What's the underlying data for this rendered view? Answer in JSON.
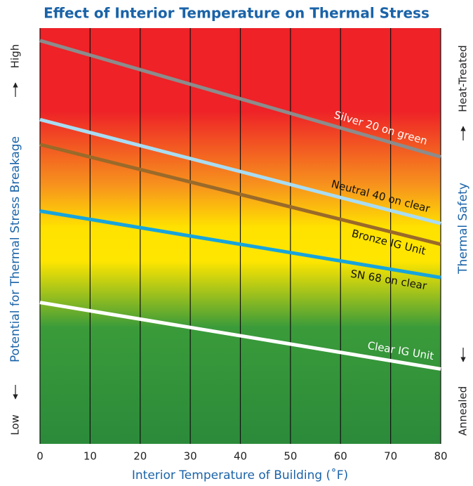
{
  "chart_data": {
    "type": "line",
    "title": "Effect of Interior Temperature on Thermal Stress",
    "xlabel": "Interior Temperature of Building (˚F)",
    "ylabel": "Potential for Thermal Stress Breakage",
    "y_low_label": "Low",
    "y_high_label": "High",
    "y2label": "Thermal Safety",
    "y2_low_label": "Annealed",
    "y2_high_label": "Heat-Treated",
    "x": [
      0,
      80
    ],
    "xlim": [
      0,
      80
    ],
    "xticks": [
      0,
      10,
      20,
      30,
      40,
      50,
      60,
      70,
      80
    ],
    "ylim": [
      0,
      100
    ],
    "grid": true,
    "series": [
      {
        "name": "Silver 20 on green",
        "color": "#8c8c8c",
        "values": [
          97,
          69
        ]
      },
      {
        "name": "Neutral 40 on clear",
        "color": "#a9dcf2",
        "values": [
          78,
          53
        ]
      },
      {
        "name": "Bronze IG Unit",
        "color": "#9a6a2a",
        "values": [
          72,
          48
        ]
      },
      {
        "name": "SN 68 on clear",
        "color": "#17a4dc",
        "values": [
          56,
          40
        ]
      },
      {
        "name": "Clear IG Unit",
        "color": "#ffffff",
        "values": [
          34,
          18
        ]
      }
    ]
  }
}
